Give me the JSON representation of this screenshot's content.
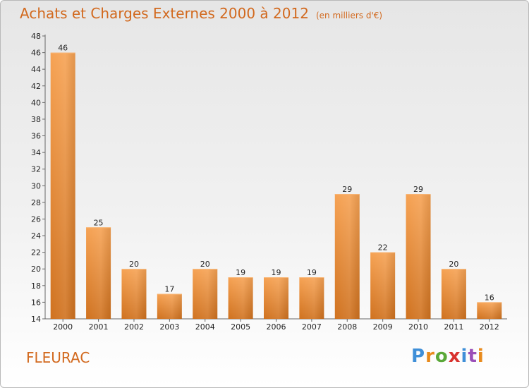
{
  "header": {
    "title": "Achats et Charges Externes 2000 à 2012",
    "unit": "(en milliers d'€)"
  },
  "footer": {
    "town": "FLEURAC",
    "logo": "Proxiti",
    "logo_colors": [
      "#3f8fd8",
      "#e88a1c",
      "#5aa838",
      "#d8322e",
      "#3f8fd8",
      "#9a4fb8",
      "#e88a1c"
    ]
  },
  "chart_data": {
    "type": "bar",
    "title": "Achats et Charges Externes 2000 à 2012",
    "subtitle": "(en milliers d'€)",
    "categories": [
      "2000",
      "2001",
      "2002",
      "2003",
      "2004",
      "2005",
      "2006",
      "2007",
      "2008",
      "2009",
      "2010",
      "2011",
      "2012"
    ],
    "values": [
      46,
      25,
      20,
      17,
      20,
      19,
      19,
      19,
      29,
      22,
      29,
      20,
      16
    ],
    "ylim": [
      14,
      48
    ],
    "yticks": [
      14,
      16,
      18,
      20,
      22,
      24,
      26,
      28,
      30,
      32,
      34,
      36,
      38,
      40,
      42,
      44,
      46,
      48
    ],
    "grid": false,
    "bar_color": "#f0923c",
    "text_color": "#d2691e"
  }
}
